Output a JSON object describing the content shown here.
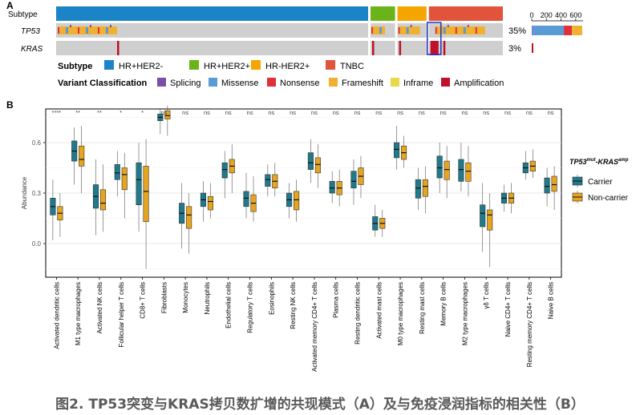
{
  "caption": "图2. TP53突变与KRAS拷贝数扩增的共现模式（A）及与免疫浸润指标的相关性（B）",
  "colors": {
    "hr_her2_neg": "#1a84c7",
    "hr_her2_pos": "#6ab41a",
    "hr_neg_her2_pos": "#f5a500",
    "tnbc": "#e2533b",
    "splicing": "#7b4fa8",
    "missense": "#5b9bd5",
    "nonsense": "#e0303a",
    "frameshift": "#f0b030",
    "inframe": "#e8d84a",
    "amplification": "#c0102a",
    "carrier": "#1f7a8c",
    "non_carrier": "#e6a51f",
    "track_bg": "#cfcfcf",
    "highlight_box": "#1f2fbf"
  },
  "chart_data": [
    {
      "panel": "A",
      "type": "oncoprint",
      "rows": [
        {
          "gene": "Subtype",
          "percent": ""
        },
        {
          "gene": "TP53",
          "percent": "35%"
        },
        {
          "gene": "KRAS",
          "percent": "3%"
        }
      ],
      "subtype_segments": [
        {
          "subtype": "HR+HER2-",
          "fraction": 0.7
        },
        {
          "subtype": "HR+HER2+",
          "fraction": 0.06
        },
        {
          "subtype": "HR-HER2+",
          "fraction": 0.07
        },
        {
          "subtype": "TNBC",
          "fraction": 0.17
        }
      ],
      "right_bar_axis": {
        "ticks": [
          "0",
          "200",
          "400",
          "600"
        ],
        "max": 700
      },
      "right_bar_tp53": [
        {
          "class": "Splicing",
          "value": 8
        },
        {
          "class": "Missense",
          "value": 430
        },
        {
          "class": "Nonsense",
          "value": 110
        },
        {
          "class": "Frameshift",
          "value": 140
        }
      ],
      "right_bar_kras": [
        {
          "class": "Amplification",
          "value": 20
        }
      ],
      "legend_subtype_title": "Subtype",
      "legend_subtype": [
        "HR+HER2-",
        "HR+HER2+",
        "HR-HER2+",
        "TNBC"
      ],
      "legend_variant_title": "Variant Classification",
      "legend_variant": [
        "Splicing",
        "Missense",
        "Nonsense",
        "Frameshift",
        "Inframe",
        "Amplification"
      ]
    },
    {
      "panel": "B",
      "type": "boxplot",
      "ylabel": "Abundance",
      "ylim": [
        -0.2,
        0.8
      ],
      "yticks": [
        0.0,
        0.3,
        0.6
      ],
      "legend_title": "TP53mut-KRASamp",
      "legend_title_parts": {
        "gene1": "TP53",
        "sup1": "mut",
        "sep": "-",
        "gene2": "KRAS",
        "sup2": "amp"
      },
      "series": [
        {
          "name": "Carrier"
        },
        {
          "name": "Non-carrier"
        }
      ],
      "categories": [
        {
          "name": "Activated dendritic cells",
          "sig": "****",
          "carrier": {
            "min": 0.02,
            "q1": 0.17,
            "med": 0.22,
            "q3": 0.27,
            "max": 0.38
          },
          "non_carrier": {
            "min": 0.04,
            "q1": 0.14,
            "med": 0.18,
            "q3": 0.22,
            "max": 0.3
          }
        },
        {
          "name": "M1 type macrophages",
          "sig": "**",
          "carrier": {
            "min": 0.35,
            "q1": 0.49,
            "med": 0.55,
            "q3": 0.61,
            "max": 0.69
          },
          "non_carrier": {
            "min": 0.3,
            "q1": 0.46,
            "med": 0.5,
            "q3": 0.58,
            "max": 0.7
          }
        },
        {
          "name": "Activated NK cells",
          "sig": "**",
          "carrier": {
            "min": 0.05,
            "q1": 0.21,
            "med": 0.28,
            "q3": 0.35,
            "max": 0.5
          },
          "non_carrier": {
            "min": 0.07,
            "q1": 0.2,
            "med": 0.24,
            "q3": 0.32,
            "max": 0.47
          }
        },
        {
          "name": "Follicular helper T cells",
          "sig": "*",
          "carrier": {
            "min": 0.28,
            "q1": 0.38,
            "med": 0.42,
            "q3": 0.47,
            "max": 0.55
          },
          "non_carrier": {
            "min": 0.15,
            "q1": 0.32,
            "med": 0.41,
            "q3": 0.45,
            "max": 0.54
          }
        },
        {
          "name": "CD8+ T cells",
          "sig": "*",
          "carrier": {
            "min": 0.07,
            "q1": 0.23,
            "med": 0.38,
            "q3": 0.48,
            "max": 0.6
          },
          "non_carrier": {
            "min": -0.15,
            "q1": 0.13,
            "med": 0.31,
            "q3": 0.46,
            "max": 0.62
          }
        },
        {
          "name": "Fibroblasts",
          "sig": "ns",
          "carrier": {
            "min": 0.65,
            "q1": 0.73,
            "med": 0.75,
            "q3": 0.77,
            "max": 0.8
          },
          "non_carrier": {
            "min": 0.64,
            "q1": 0.74,
            "med": 0.76,
            "q3": 0.79,
            "max": 0.82
          }
        },
        {
          "name": "Monocytes",
          "sig": "ns",
          "carrier": {
            "min": -0.03,
            "q1": 0.12,
            "med": 0.18,
            "q3": 0.24,
            "max": 0.36
          },
          "non_carrier": {
            "min": -0.06,
            "q1": 0.09,
            "med": 0.17,
            "q3": 0.22,
            "max": 0.3
          }
        },
        {
          "name": "Neutrophils",
          "sig": "ns",
          "carrier": {
            "min": 0.13,
            "q1": 0.22,
            "med": 0.26,
            "q3": 0.3,
            "max": 0.37
          },
          "non_carrier": {
            "min": 0.15,
            "q1": 0.2,
            "med": 0.25,
            "q3": 0.28,
            "max": 0.36
          }
        },
        {
          "name": "Endothelial cells",
          "sig": "ns",
          "carrier": {
            "min": 0.27,
            "q1": 0.39,
            "med": 0.44,
            "q3": 0.48,
            "max": 0.55
          },
          "non_carrier": {
            "min": 0.3,
            "q1": 0.42,
            "med": 0.46,
            "q3": 0.5,
            "max": 0.59
          }
        },
        {
          "name": "Regulatory T cells",
          "sig": "ns",
          "carrier": {
            "min": 0.15,
            "q1": 0.22,
            "med": 0.27,
            "q3": 0.31,
            "max": 0.42
          },
          "non_carrier": {
            "min": 0.13,
            "q1": 0.19,
            "med": 0.24,
            "q3": 0.29,
            "max": 0.4
          }
        },
        {
          "name": "Eosinophils",
          "sig": "ns",
          "carrier": {
            "min": 0.28,
            "q1": 0.34,
            "med": 0.38,
            "q3": 0.41,
            "max": 0.47
          },
          "non_carrier": {
            "min": 0.28,
            "q1": 0.33,
            "med": 0.37,
            "q3": 0.41,
            "max": 0.48
          }
        },
        {
          "name": "Resting NK cells",
          "sig": "ns",
          "carrier": {
            "min": 0.15,
            "q1": 0.22,
            "med": 0.26,
            "q3": 0.3,
            "max": 0.36
          },
          "non_carrier": {
            "min": 0.13,
            "q1": 0.2,
            "med": 0.26,
            "q3": 0.31,
            "max": 0.38
          }
        },
        {
          "name": "Activated memory CD4+ T cells",
          "sig": "ns",
          "carrier": {
            "min": 0.36,
            "q1": 0.44,
            "med": 0.48,
            "q3": 0.54,
            "max": 0.62
          },
          "non_carrier": {
            "min": 0.33,
            "q1": 0.42,
            "med": 0.47,
            "q3": 0.51,
            "max": 0.59
          }
        },
        {
          "name": "Plasma cells",
          "sig": "ns",
          "carrier": {
            "min": 0.24,
            "q1": 0.3,
            "med": 0.33,
            "q3": 0.37,
            "max": 0.43
          },
          "non_carrier": {
            "min": 0.22,
            "q1": 0.29,
            "med": 0.33,
            "q3": 0.37,
            "max": 0.44
          }
        },
        {
          "name": "Resting dendritic cells",
          "sig": "ns",
          "carrier": {
            "min": 0.23,
            "q1": 0.33,
            "med": 0.37,
            "q3": 0.43,
            "max": 0.5
          },
          "non_carrier": {
            "min": 0.27,
            "q1": 0.35,
            "med": 0.4,
            "q3": 0.45,
            "max": 0.52
          }
        },
        {
          "name": "Activated mast cells",
          "sig": "ns",
          "carrier": {
            "min": 0.04,
            "q1": 0.08,
            "med": 0.12,
            "q3": 0.16,
            "max": 0.23
          },
          "non_carrier": {
            "min": 0.04,
            "q1": 0.09,
            "med": 0.12,
            "q3": 0.15,
            "max": 0.2
          }
        },
        {
          "name": "M0 type macrophages",
          "sig": "ns",
          "carrier": {
            "min": 0.44,
            "q1": 0.51,
            "med": 0.56,
            "q3": 0.6,
            "max": 0.7
          },
          "non_carrier": {
            "min": 0.45,
            "q1": 0.5,
            "med": 0.54,
            "q3": 0.58,
            "max": 0.64
          }
        },
        {
          "name": "Resting mast cells",
          "sig": "ns",
          "carrier": {
            "min": 0.2,
            "q1": 0.27,
            "med": 0.33,
            "q3": 0.38,
            "max": 0.45
          },
          "non_carrier": {
            "min": 0.18,
            "q1": 0.28,
            "med": 0.34,
            "q3": 0.38,
            "max": 0.46
          }
        },
        {
          "name": "Memory B cells",
          "sig": "ns",
          "carrier": {
            "min": 0.3,
            "q1": 0.39,
            "med": 0.45,
            "q3": 0.52,
            "max": 0.6
          },
          "non_carrier": {
            "min": 0.27,
            "q1": 0.38,
            "med": 0.44,
            "q3": 0.49,
            "max": 0.58
          }
        },
        {
          "name": "M2 type macrophages",
          "sig": "ns",
          "carrier": {
            "min": 0.31,
            "q1": 0.37,
            "med": 0.44,
            "q3": 0.5,
            "max": 0.6
          },
          "non_carrier": {
            "min": 0.28,
            "q1": 0.37,
            "med": 0.43,
            "q3": 0.48,
            "max": 0.58
          }
        },
        {
          "name": "γδ T cells",
          "sig": "ns",
          "carrier": {
            "min": -0.05,
            "q1": 0.1,
            "med": 0.18,
            "q3": 0.23,
            "max": 0.36
          },
          "non_carrier": {
            "min": -0.14,
            "q1": 0.08,
            "med": 0.17,
            "q3": 0.2,
            "max": 0.3
          }
        },
        {
          "name": "Naive CD4+ T cells",
          "sig": "ns",
          "carrier": {
            "min": 0.19,
            "q1": 0.24,
            "med": 0.27,
            "q3": 0.3,
            "max": 0.35
          },
          "non_carrier": {
            "min": 0.18,
            "q1": 0.24,
            "med": 0.27,
            "q3": 0.3,
            "max": 0.36
          }
        },
        {
          "name": "Resting memory CD4+ T cells",
          "sig": "ns",
          "carrier": {
            "min": 0.38,
            "q1": 0.42,
            "med": 0.45,
            "q3": 0.48,
            "max": 0.55
          },
          "non_carrier": {
            "min": 0.39,
            "q1": 0.43,
            "med": 0.46,
            "q3": 0.49,
            "max": 0.56
          }
        },
        {
          "name": "Naive B cells",
          "sig": "ns",
          "carrier": {
            "min": 0.22,
            "q1": 0.3,
            "med": 0.34,
            "q3": 0.39,
            "max": 0.45
          },
          "non_carrier": {
            "min": 0.2,
            "q1": 0.31,
            "med": 0.35,
            "q3": 0.4,
            "max": 0.46
          }
        }
      ]
    }
  ]
}
